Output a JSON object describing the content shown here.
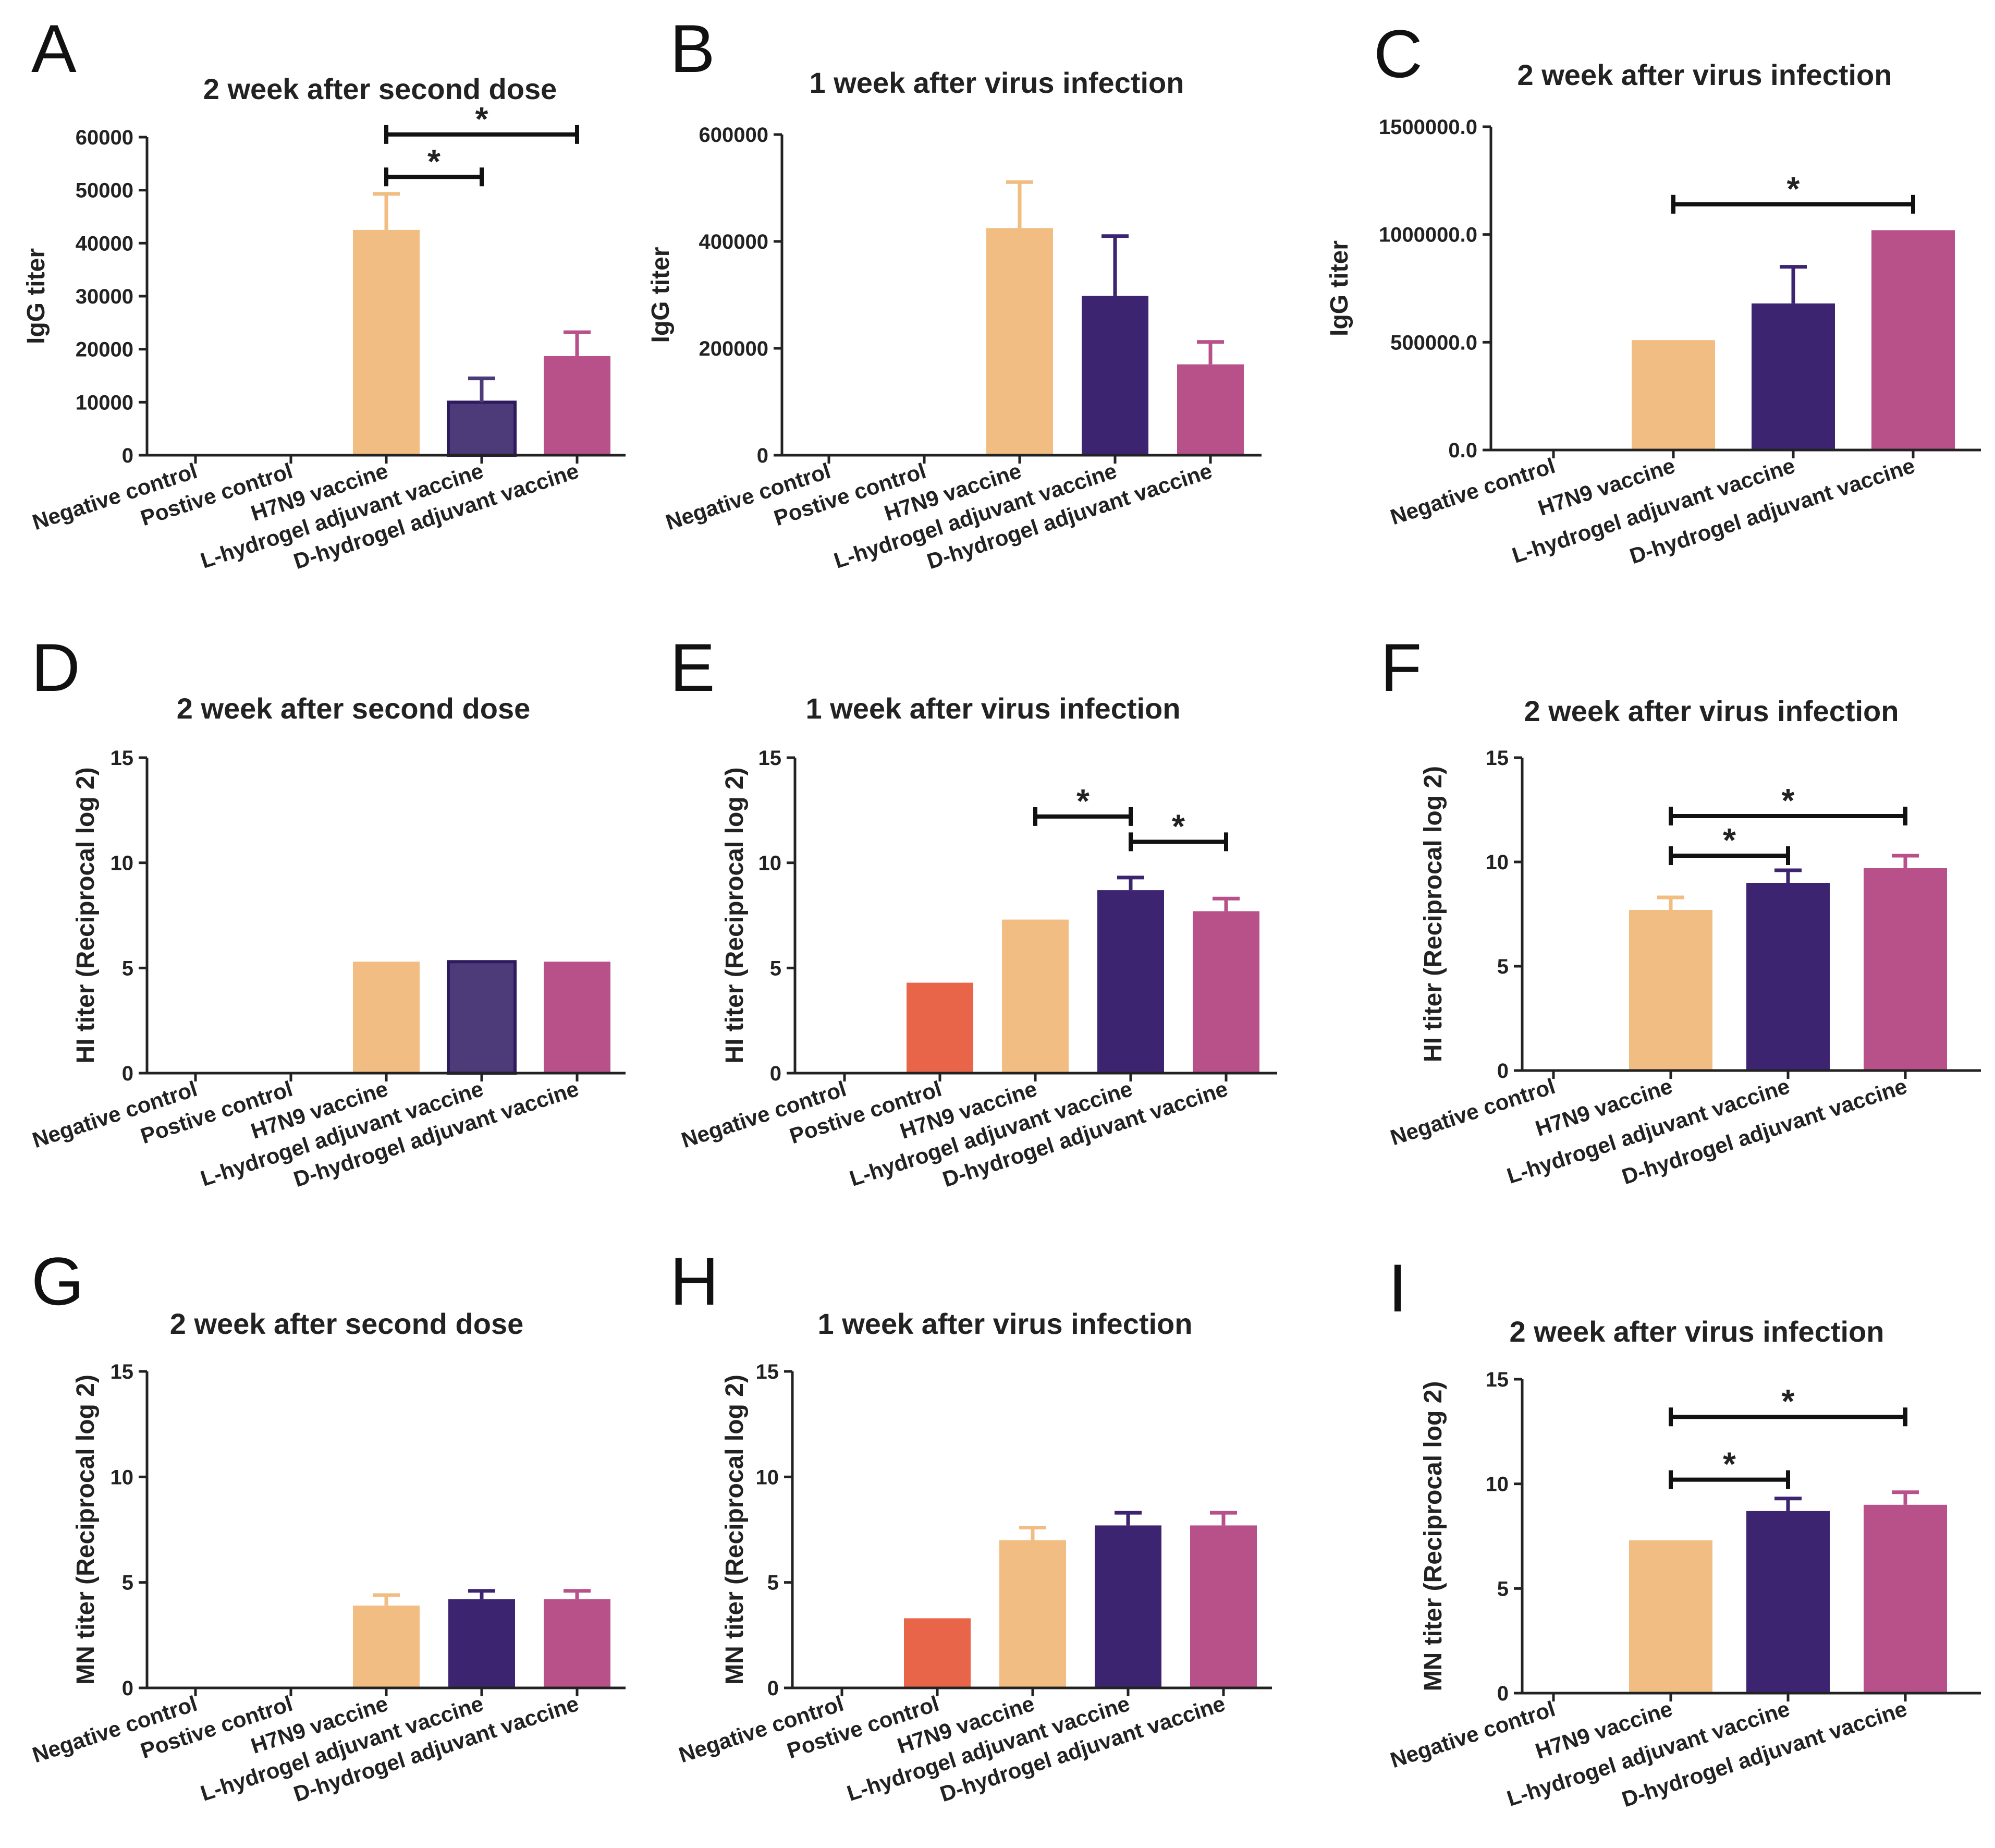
{
  "colors": {
    "negative_control": "#ffffff",
    "postive_control": "#e8654a",
    "h7n9_vaccine": "#f1bd82",
    "l_hydrogel": "#3d2471",
    "l_hydrogel_a": "#4d3a78",
    "d_hydrogel": "#b8508a",
    "axis": "#222222"
  },
  "chart_data": [
    {
      "panel": "A",
      "type": "bar",
      "title": "2 week after second dose",
      "ylabel": "IgG titer",
      "ylim": [
        0,
        60000
      ],
      "yticks": [
        "0",
        "10000",
        "20000",
        "30000",
        "40000",
        "50000",
        "60000"
      ],
      "categories": [
        "Negative control",
        "Postive control",
        "H7N9 vaccine",
        "L-hydrogel adjuvant vaccine",
        "D-hydrogel adjuvant vaccine"
      ],
      "values": [
        200,
        200,
        42500,
        10000,
        18700
      ],
      "errors": [
        0,
        0,
        6800,
        4500,
        4500
      ],
      "color_keys": [
        "negative_control",
        "postive_control",
        "h7n9_vaccine",
        "l_hydrogel_a",
        "d_hydrogel"
      ],
      "significance": [
        {
          "from": 2,
          "to": 4,
          "label": "*",
          "level": 60500
        },
        {
          "from": 2,
          "to": 3,
          "label": "*",
          "level": 52500
        }
      ]
    },
    {
      "panel": "B",
      "type": "bar",
      "title": "1 week after virus infection",
      "ylabel": "IgG titer",
      "ylim": [
        0,
        600000
      ],
      "yticks": [
        "0",
        "200000",
        "400000",
        "600000"
      ],
      "categories": [
        "Negative control",
        "Postive control",
        "H7N9 vaccine",
        "L-hydrogel adjuvant vaccine",
        "D-hydrogel adjuvant vaccine"
      ],
      "values": [
        0,
        2000,
        425000,
        298000,
        170000
      ],
      "errors": [
        0,
        0,
        86000,
        112000,
        42000
      ],
      "color_keys": [
        "negative_control",
        "postive_control",
        "h7n9_vaccine",
        "l_hydrogel",
        "d_hydrogel"
      ],
      "significance": []
    },
    {
      "panel": "C",
      "type": "bar",
      "title": "2 week after virus infection",
      "ylabel": "IgG titer",
      "ylim": [
        0,
        1500000
      ],
      "yticks": [
        "0.0",
        "500000.0",
        "1000000.0",
        "1500000.0"
      ],
      "categories": [
        "Negative control",
        "H7N9 vaccine",
        "L-hydrogel adjuvant vaccine",
        "D-hydrogel adjuvant vaccine"
      ],
      "values": [
        0,
        510000,
        680000,
        1020000
      ],
      "errors": [
        0,
        0,
        170000,
        0
      ],
      "color_keys": [
        "negative_control",
        "h7n9_vaccine",
        "l_hydrogel",
        "d_hydrogel"
      ],
      "significance": [
        {
          "from": 1,
          "to": 3,
          "label": "*",
          "level": 1140000
        }
      ]
    },
    {
      "panel": "D",
      "type": "bar",
      "title": "2 week after second dose",
      "ylabel": "HI titer (Reciprocal log 2)",
      "ylim": [
        0,
        15
      ],
      "yticks": [
        "0",
        "5",
        "10",
        "15"
      ],
      "categories": [
        "Negative control",
        "Postive control",
        "H7N9 vaccine",
        "L-hydrogel adjuvant vaccine",
        "D-hydrogel adjuvant vaccine"
      ],
      "values": [
        0,
        0,
        5.3,
        5.3,
        5.3
      ],
      "errors": [
        0,
        0,
        0,
        0,
        0
      ],
      "color_keys": [
        "negative_control",
        "postive_control",
        "h7n9_vaccine",
        "l_hydrogel_a",
        "d_hydrogel"
      ],
      "significance": []
    },
    {
      "panel": "E",
      "type": "bar",
      "title": "1 week after virus infection",
      "ylabel": "HI titer (Reciprocal log 2)",
      "ylim": [
        0,
        15
      ],
      "yticks": [
        "0",
        "5",
        "10",
        "15"
      ],
      "categories": [
        "Negative control",
        "Postive control",
        "H7N9 vaccine",
        "L-hydrogel adjuvant vaccine",
        "D-hydrogel adjuvant vaccine"
      ],
      "values": [
        0,
        4.3,
        7.3,
        8.7,
        7.7
      ],
      "errors": [
        0,
        0,
        0,
        0.6,
        0.6
      ],
      "color_keys": [
        "negative_control",
        "postive_control",
        "h7n9_vaccine",
        "l_hydrogel",
        "d_hydrogel"
      ],
      "significance": [
        {
          "from": 2,
          "to": 3,
          "label": "*",
          "level": 12.2
        },
        {
          "from": 3,
          "to": 4,
          "label": "*",
          "level": 11.0
        }
      ]
    },
    {
      "panel": "F",
      "type": "bar",
      "title": "2 week after virus infection",
      "ylabel": "HI titer (Reciprocal log 2)",
      "ylim": [
        0,
        15
      ],
      "yticks": [
        "0",
        "5",
        "10",
        "15"
      ],
      "categories": [
        "Negative control",
        "H7N9 vaccine",
        "L-hydrogel adjuvant vaccine",
        "D-hydrogel adjuvant vaccine"
      ],
      "values": [
        0,
        7.7,
        9.0,
        9.7
      ],
      "errors": [
        0,
        0.6,
        0.6,
        0.6
      ],
      "color_keys": [
        "negative_control",
        "h7n9_vaccine",
        "l_hydrogel",
        "d_hydrogel"
      ],
      "significance": [
        {
          "from": 1,
          "to": 3,
          "label": "*",
          "level": 12.2
        },
        {
          "from": 1,
          "to": 2,
          "label": "*",
          "level": 10.3
        }
      ]
    },
    {
      "panel": "G",
      "type": "bar",
      "title": "2 week after second dose",
      "ylabel": "MN titer (Reciprocal log 2)",
      "ylim": [
        0,
        15
      ],
      "yticks": [
        "0",
        "5",
        "10",
        "15"
      ],
      "categories": [
        "Negative control",
        "Postive control",
        "H7N9 vaccine",
        "L-hydrogel adjuvant vaccine",
        "D-hydrogel adjuvant vaccine"
      ],
      "values": [
        0,
        0,
        3.9,
        4.2,
        4.2
      ],
      "errors": [
        0,
        0,
        0.5,
        0.4,
        0.4
      ],
      "color_keys": [
        "negative_control",
        "postive_control",
        "h7n9_vaccine",
        "l_hydrogel",
        "d_hydrogel"
      ],
      "significance": []
    },
    {
      "panel": "H",
      "type": "bar",
      "title": "1 week after virus infection",
      "ylabel": "MN titer (Reciprocal log 2)",
      "ylim": [
        0,
        15
      ],
      "yticks": [
        "0",
        "5",
        "10",
        "15"
      ],
      "categories": [
        "Negative control",
        "Postive control",
        "H7N9 vaccine",
        "L-hydrogel adjuvant vaccine",
        "D-hydrogel adjuvant vaccine"
      ],
      "values": [
        0,
        3.3,
        7.0,
        7.7,
        7.7
      ],
      "errors": [
        0,
        0,
        0.6,
        0.6,
        0.6
      ],
      "color_keys": [
        "negative_control",
        "postive_control",
        "h7n9_vaccine",
        "l_hydrogel",
        "d_hydrogel"
      ],
      "significance": []
    },
    {
      "panel": "I",
      "type": "bar",
      "title": "2 week after virus infection",
      "ylabel": "MN titer (Reciprocal log 2)",
      "ylim": [
        0,
        15
      ],
      "yticks": [
        "0",
        "5",
        "10",
        "15"
      ],
      "categories": [
        "Negative control",
        "H7N9 vaccine",
        "L-hydrogel adjuvant vaccine",
        "D-hydrogel adjuvant vaccine"
      ],
      "values": [
        0,
        7.3,
        8.7,
        9.0
      ],
      "errors": [
        0,
        0,
        0.6,
        0.6
      ],
      "color_keys": [
        "negative_control",
        "h7n9_vaccine",
        "l_hydrogel",
        "d_hydrogel"
      ],
      "significance": [
        {
          "from": 1,
          "to": 3,
          "label": "*",
          "level": 13.2
        },
        {
          "from": 1,
          "to": 2,
          "label": "*",
          "level": 10.2
        }
      ]
    }
  ]
}
